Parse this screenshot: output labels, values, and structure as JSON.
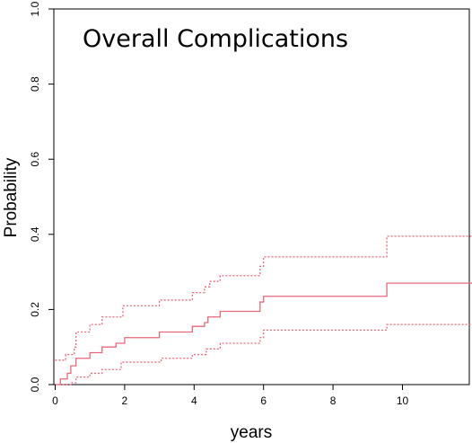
{
  "chart_data": {
    "type": "line",
    "title": "Overall Complications",
    "xlabel": "years",
    "ylabel": "Probability",
    "xlim": [
      0,
      12
    ],
    "ylim": [
      0,
      1
    ],
    "x_ticks": [
      0,
      2,
      4,
      6,
      8,
      10
    ],
    "x_tick_labels": [
      "0",
      "2",
      "4",
      "6",
      "8",
      "10"
    ],
    "y_ticks": [
      0.0,
      0.2,
      0.4,
      0.6,
      0.8,
      1.0
    ],
    "y_tick_labels": [
      "0.0",
      "0.2",
      "0.4",
      "0.6",
      "0.8",
      "1.0"
    ],
    "grid": false,
    "step": true,
    "color": "#e8687a",
    "series": [
      {
        "style": "solid",
        "x": [
          0,
          0.15,
          0.35,
          0.45,
          0.6,
          1.0,
          1.35,
          1.75,
          2.0,
          3.0,
          3.95,
          4.3,
          4.4,
          4.75,
          5.9,
          6.0,
          9.55,
          12
        ],
        "y": [
          0.0,
          0.015,
          0.03,
          0.05,
          0.07,
          0.085,
          0.1,
          0.11,
          0.125,
          0.14,
          0.155,
          0.165,
          0.18,
          0.195,
          0.22,
          0.235,
          0.27,
          0.27
        ]
      },
      {
        "style": "dotted",
        "x": [
          0,
          0.3,
          0.55,
          0.6,
          1.0,
          1.35,
          1.95,
          3.0,
          3.95,
          4.3,
          4.45,
          4.75,
          5.9,
          6.0,
          9.55,
          12
        ],
        "y": [
          0.065,
          0.08,
          0.1,
          0.14,
          0.16,
          0.18,
          0.21,
          0.225,
          0.245,
          0.26,
          0.275,
          0.29,
          0.315,
          0.34,
          0.395,
          0.395
        ]
      },
      {
        "style": "dotted",
        "x": [
          0,
          0.45,
          0.6,
          1.0,
          1.35,
          1.9,
          3.05,
          3.95,
          4.35,
          4.75,
          5.9,
          6.0,
          9.55,
          12
        ],
        "y": [
          0.0,
          0.005,
          0.02,
          0.03,
          0.04,
          0.06,
          0.07,
          0.08,
          0.095,
          0.11,
          0.125,
          0.145,
          0.16,
          0.16
        ]
      }
    ]
  }
}
